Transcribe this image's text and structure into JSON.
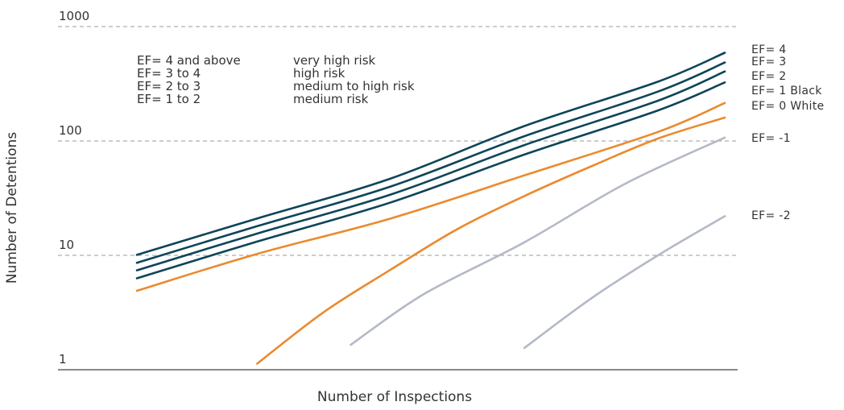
{
  "chart_data": {
    "type": "line",
    "xlabel": "Number of Inspections",
    "ylabel": "Number of Detentions",
    "y_scale": "log",
    "ylim": [
      1,
      1000
    ],
    "y_ticks": [
      "1",
      "10",
      "100",
      "1000"
    ],
    "grid": true,
    "legend": [
      {
        "ef": "EF= 4 and above",
        "risk": "very high risk"
      },
      {
        "ef": "EF= 3 to 4",
        "risk": "high risk"
      },
      {
        "ef": "EF= 2 to 3",
        "risk": "medium to high risk"
      },
      {
        "ef": "EF= 1 to 2",
        "risk": "medium risk"
      }
    ],
    "series": [
      {
        "name": "EF= 4",
        "color": "#0e4559",
        "points": [
          [
            0.12,
            10.1
          ],
          [
            0.3,
            21
          ],
          [
            0.5,
            47
          ],
          [
            0.7,
            135
          ],
          [
            0.9,
            330
          ],
          [
            1.0,
            590
          ]
        ]
      },
      {
        "name": "EF= 3",
        "color": "#0e4559",
        "points": [
          [
            0.12,
            8.6
          ],
          [
            0.3,
            18
          ],
          [
            0.5,
            40
          ],
          [
            0.7,
            110
          ],
          [
            0.9,
            270
          ],
          [
            1.0,
            485
          ]
        ]
      },
      {
        "name": "EF= 2",
        "color": "#0e4559",
        "points": [
          [
            0.12,
            7.4
          ],
          [
            0.3,
            15.5
          ],
          [
            0.5,
            34
          ],
          [
            0.7,
            92
          ],
          [
            0.9,
            225
          ],
          [
            1.0,
            405
          ]
        ]
      },
      {
        "name": "EF= 1 Black",
        "color": "#0e4559",
        "points": [
          [
            0.12,
            6.3
          ],
          [
            0.3,
            13.2
          ],
          [
            0.5,
            29
          ],
          [
            0.7,
            76
          ],
          [
            0.9,
            185
          ],
          [
            1.0,
            325
          ]
        ]
      },
      {
        "name": "EF= 0 White",
        "color": "#ea8a2e",
        "points": [
          [
            0.12,
            4.9
          ],
          [
            0.3,
            10.3
          ],
          [
            0.5,
            21
          ],
          [
            0.7,
            50
          ],
          [
            0.9,
            120
          ],
          [
            1.0,
            215
          ]
        ]
      },
      {
        "name": "",
        "color": "#ea8a2e",
        "points": [
          [
            0.3,
            1.13
          ],
          [
            0.4,
            3.2
          ],
          [
            0.5,
            7.5
          ],
          [
            0.6,
            17
          ],
          [
            0.7,
            33
          ],
          [
            0.8,
            60
          ],
          [
            0.9,
            105
          ],
          [
            1.0,
            160
          ]
        ]
      },
      {
        "name": "EF= -1",
        "color": "#b4b9c6",
        "points": [
          [
            0.44,
            1.65
          ],
          [
            0.55,
            4.6
          ],
          [
            0.7,
            13
          ],
          [
            0.85,
            42
          ],
          [
            1.0,
            107
          ]
        ]
      },
      {
        "name": "EF= -2",
        "color": "#b4b9c6",
        "points": [
          [
            0.7,
            1.55
          ],
          [
            0.8,
            4.2
          ],
          [
            0.9,
            10
          ],
          [
            1.0,
            22
          ]
        ]
      }
    ]
  }
}
